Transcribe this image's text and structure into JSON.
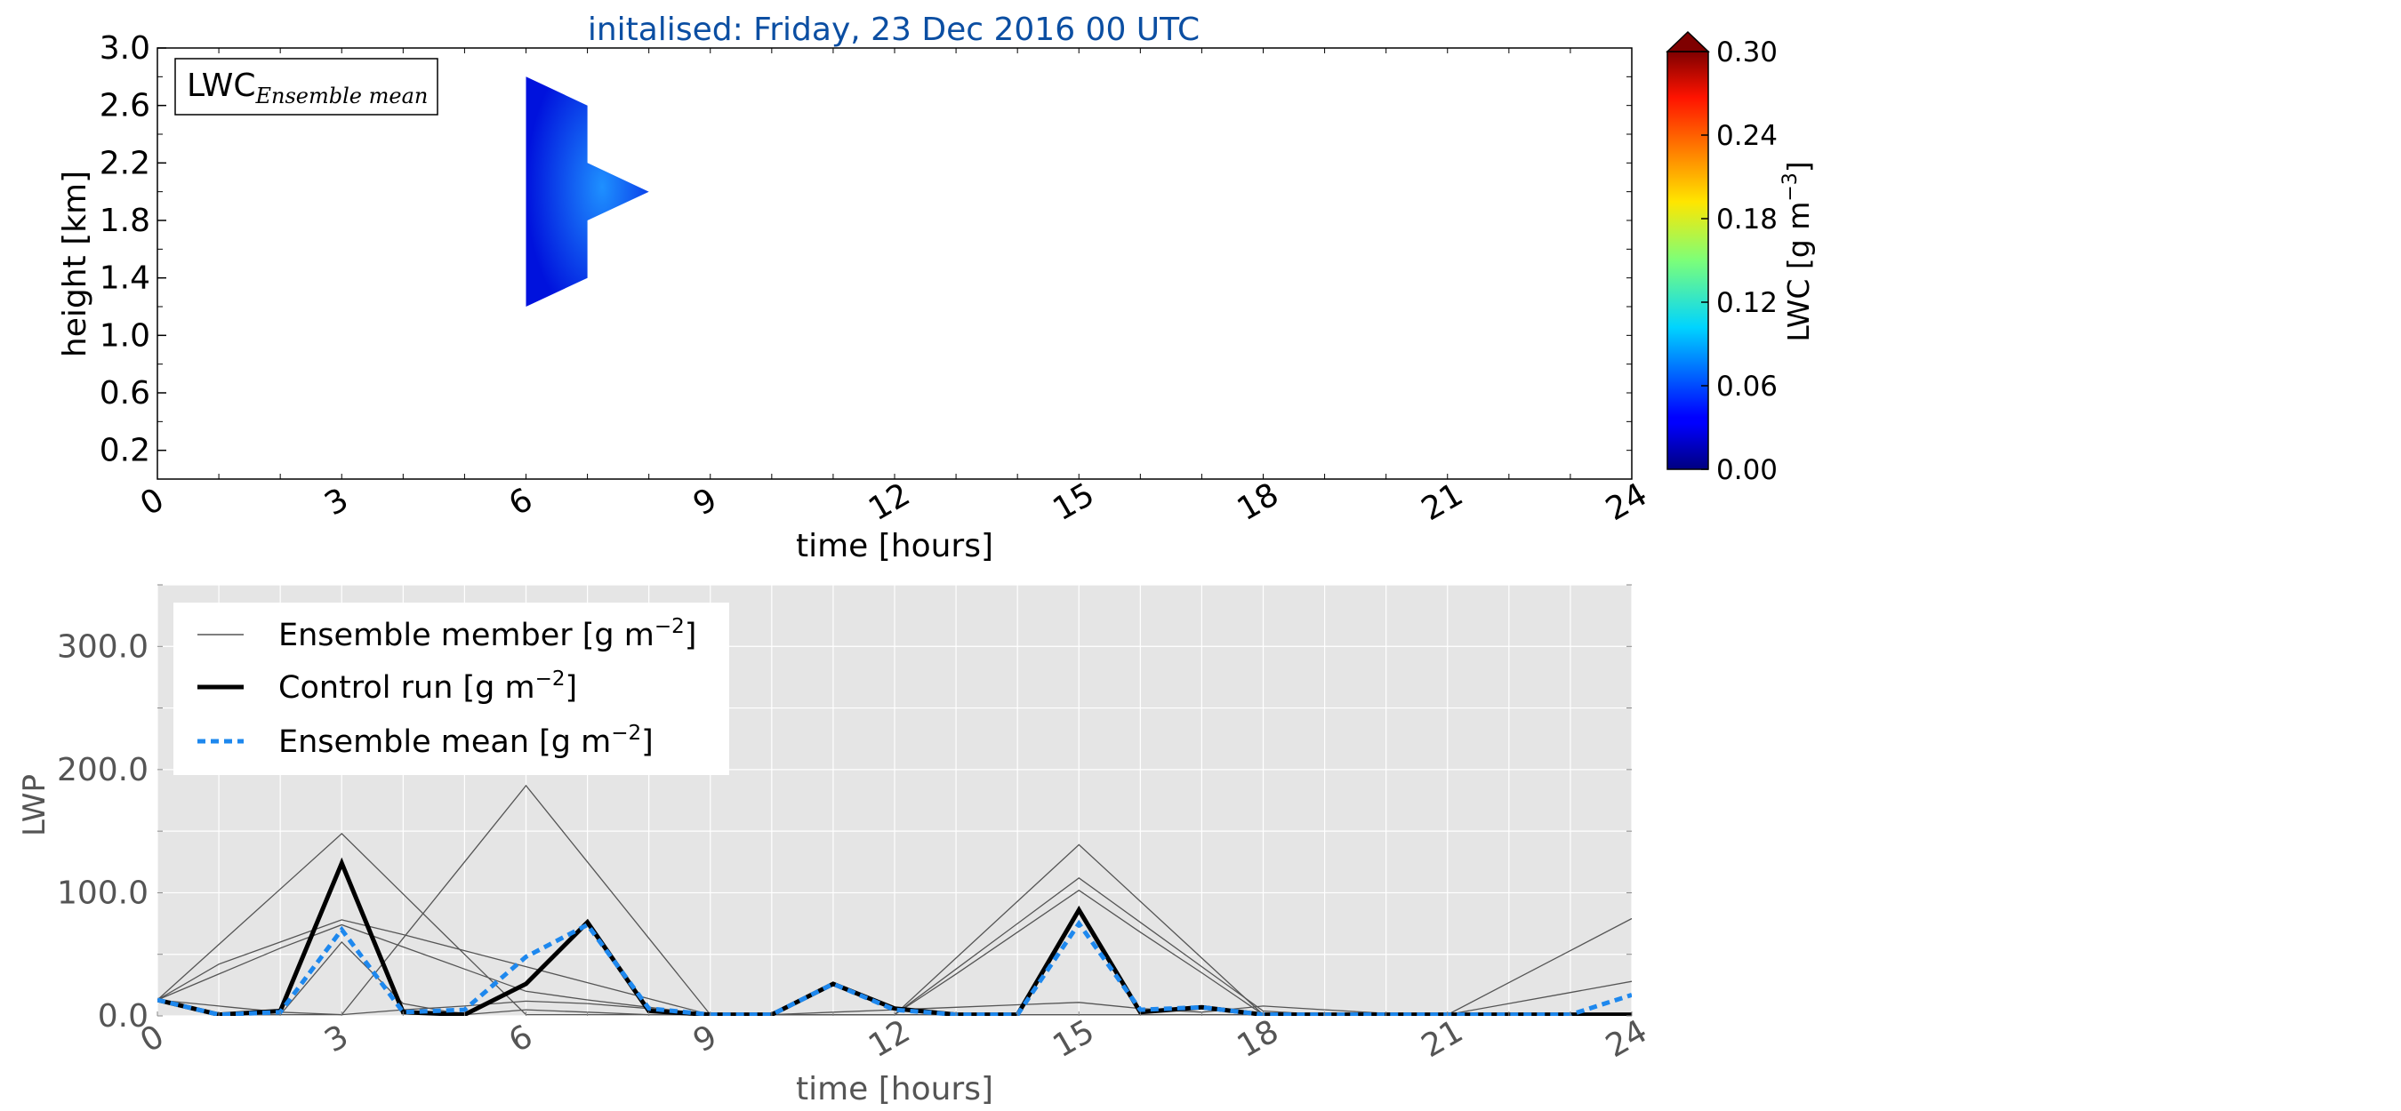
{
  "figure_title": "initalised: Friday, 23 Dec 2016 00 UTC",
  "colors": {
    "title": "#0b4ea2",
    "lwc_patch_light": "#1e90ff",
    "lwc_patch_dark": "#0012dd",
    "axes_bg_bottom": "#e5e5e5",
    "member_line": "#555555",
    "control_line": "#000000",
    "mean_line": "#1e88ee"
  },
  "chart_data": [
    {
      "type": "heatmap",
      "xlabel": "time [hours]",
      "ylabel": "height [km]",
      "xlim": [
        0,
        24
      ],
      "ylim": [
        0,
        3.0
      ],
      "xticks": [
        0,
        3,
        6,
        9,
        12,
        15,
        18,
        21,
        24
      ],
      "yticks": [
        0.2,
        0.6,
        1.0,
        1.4,
        1.8,
        2.2,
        2.6,
        3.0
      ],
      "legend_text": "LWC",
      "legend_subscript": "Ensemble mean",
      "legend_position": "upper-left",
      "colorbar": {
        "label": "LWC [g m",
        "label_exponent": "−3",
        "label_close": "]",
        "ticks": [
          "0.00",
          "0.06",
          "0.12",
          "0.18",
          "0.24",
          "0.30"
        ],
        "min": 0.0,
        "max": 0.3,
        "colormap": "jet",
        "extend": "max"
      },
      "patch_outline": [
        [
          6,
          2.8
        ],
        [
          7,
          2.6
        ],
        [
          7,
          2.2
        ],
        [
          8,
          2.0
        ],
        [
          7,
          1.8
        ],
        [
          7,
          1.4
        ],
        [
          6,
          1.2
        ]
      ],
      "patch_value_range": [
        0.0,
        0.08
      ]
    },
    {
      "type": "line",
      "xlabel": "time [hours]",
      "ylabel": "LWP",
      "xlim": [
        0,
        24
      ],
      "ylim": [
        0,
        350
      ],
      "xticks": [
        0,
        3,
        6,
        9,
        12,
        15,
        18,
        21,
        24
      ],
      "yticks": [
        0,
        100,
        200,
        300
      ],
      "ytick_labels": [
        "0.0",
        "100.0",
        "200.0",
        "300.0"
      ],
      "grid": true,
      "legend_position": "upper-left",
      "x": [
        0,
        1,
        2,
        3,
        4,
        5,
        6,
        7,
        8,
        9,
        10,
        11,
        12,
        13,
        14,
        15,
        16,
        17,
        18,
        19,
        20,
        21,
        22,
        23,
        24
      ],
      "series": [
        {
          "name": "Ensemble member [g m",
          "unit_exponent": "−2",
          "unit_close": "]",
          "style": "member",
          "values": [
            13,
            42,
            60,
            78,
            66,
            53,
            40,
            27,
            14,
            1,
            1,
            1,
            1,
            34,
            68,
            102,
            68,
            35,
            1,
            1,
            1,
            1,
            27,
            53,
            79
          ]
        },
        {
          "name": "Control run [g m",
          "unit_exponent": "−2",
          "unit_close": "]",
          "style": "control",
          "values": [
            13,
            1,
            4,
            124,
            3,
            1,
            26,
            76,
            4,
            1,
            1,
            26,
            6,
            1,
            1,
            86,
            3,
            7,
            1,
            1,
            1,
            1,
            1,
            1,
            1
          ]
        },
        {
          "name": "Ensemble mean [g m",
          "unit_exponent": "−2",
          "unit_close": "]",
          "style": "mean",
          "values": [
            13,
            1,
            3,
            70,
            3,
            5,
            48,
            74,
            6,
            1,
            1,
            26,
            5,
            1,
            1,
            75,
            5,
            7,
            1,
            1,
            1,
            1,
            1,
            1,
            17
          ]
        },
        {
          "style": "member",
          "values": [
            13,
            1,
            1,
            1,
            63,
            125,
            187,
            125,
            63,
            1,
            1,
            1,
            1,
            1,
            1,
            1,
            1,
            1,
            1,
            1,
            1,
            1,
            1,
            1,
            1
          ]
        },
        {
          "style": "member",
          "values": [
            13,
            58,
            103,
            148,
            99,
            50,
            1,
            1,
            1,
            1,
            1,
            1,
            1,
            47,
            93,
            139,
            93,
            47,
            1,
            1,
            1,
            1,
            1,
            1,
            1
          ]
        },
        {
          "style": "member",
          "values": [
            13,
            34,
            55,
            74,
            56,
            38,
            20,
            13,
            7,
            1,
            1,
            1,
            1,
            38,
            75,
            112,
            76,
            40,
            4,
            1,
            1,
            1,
            1,
            1,
            1
          ]
        },
        {
          "style": "member",
          "values": [
            13,
            8,
            3,
            1,
            5,
            8,
            12,
            10,
            6,
            1,
            1,
            3,
            5,
            7,
            9,
            11,
            6,
            3,
            8,
            5,
            2,
            1,
            10,
            19,
            28
          ]
        },
        {
          "style": "member",
          "values": [
            13,
            1,
            1,
            60,
            10,
            1,
            5,
            3,
            1,
            1,
            1,
            1,
            1,
            1,
            1,
            1,
            1,
            1,
            1,
            1,
            1,
            1,
            1,
            1,
            1
          ]
        }
      ]
    }
  ]
}
